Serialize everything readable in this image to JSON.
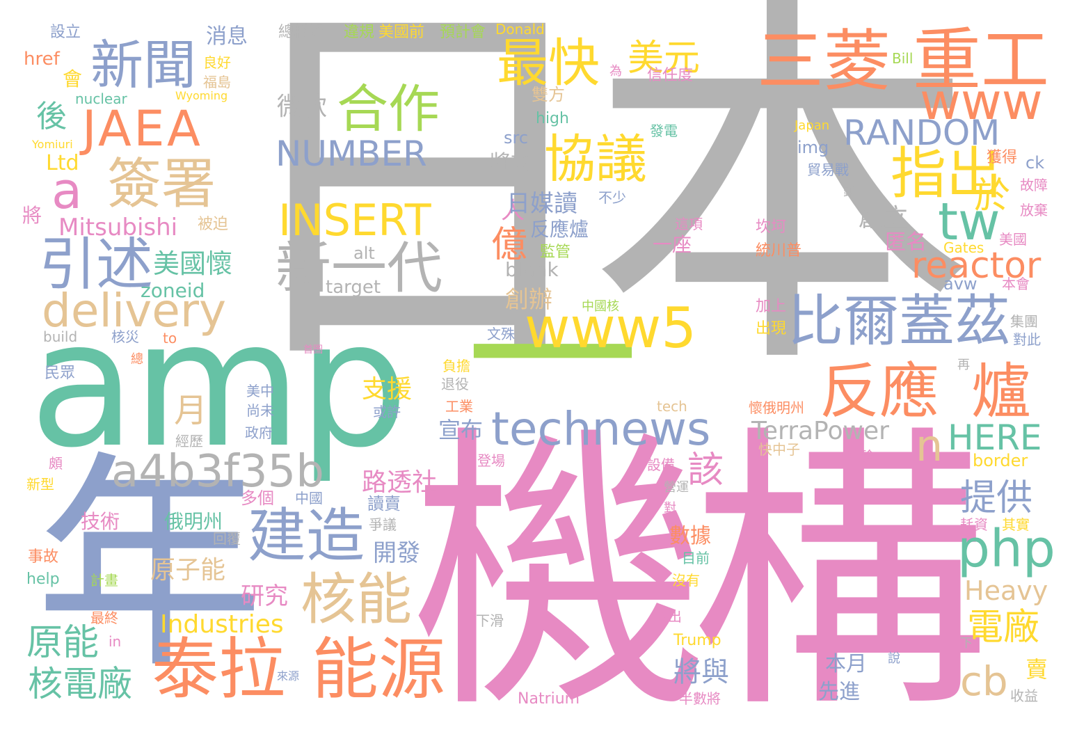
{
  "palette": {
    "green": "#66c2a5",
    "orange": "#fc8d62",
    "blue": "#8da0cb",
    "pink": "#e78ac3",
    "lime": "#a6d854",
    "yellow": "#ffd92f",
    "tan": "#e5c494",
    "gray": "#b3b3b3"
  },
  "words": [
    {
      "text": "日本",
      "color": "gray",
      "weight": "largest"
    },
    {
      "text": "機構",
      "color": "pink",
      "weight": "largest"
    },
    {
      "text": "amp",
      "color": "green",
      "weight": "largest"
    },
    {
      "text": "年",
      "color": "blue",
      "weight": "largest"
    },
    {
      "text": "一",
      "color": "lime",
      "weight": "large"
    },
    {
      "text": "三菱",
      "color": "orange",
      "weight": "large"
    },
    {
      "text": "重工",
      "color": "orange",
      "weight": "large"
    },
    {
      "text": "新聞",
      "color": "blue",
      "weight": "large"
    },
    {
      "text": "JAEA",
      "color": "orange",
      "weight": "large"
    },
    {
      "text": "合作",
      "color": "lime",
      "weight": "large"
    },
    {
      "text": "NUMBER",
      "color": "blue",
      "weight": "large"
    },
    {
      "text": "最快",
      "color": "yellow",
      "weight": "large"
    },
    {
      "text": "美元",
      "color": "yellow",
      "weight": "medium"
    },
    {
      "text": "www",
      "color": "orange",
      "weight": "large"
    },
    {
      "text": "RANDOM",
      "color": "blue",
      "weight": "large"
    },
    {
      "text": "協議",
      "color": "yellow",
      "weight": "large"
    },
    {
      "text": "指出",
      "color": "yellow",
      "weight": "large"
    },
    {
      "text": "於",
      "color": "yellow",
      "weight": "medium"
    },
    {
      "text": "簽署",
      "color": "tan",
      "weight": "large"
    },
    {
      "text": "a",
      "color": "pink",
      "weight": "medium"
    },
    {
      "text": "INSERT",
      "color": "yellow",
      "weight": "large"
    },
    {
      "text": "新一代",
      "color": "gray",
      "weight": "large"
    },
    {
      "text": "tw",
      "color": "green",
      "weight": "large"
    },
    {
      "text": "引述",
      "color": "blue",
      "weight": "large"
    },
    {
      "text": "delivery",
      "color": "tan",
      "weight": "large"
    },
    {
      "text": "www5",
      "color": "yellow",
      "weight": "large"
    },
    {
      "text": "比爾蓋茲",
      "color": "blue",
      "weight": "large"
    },
    {
      "text": "reactor",
      "color": "orange",
      "weight": "large"
    },
    {
      "text": "反應",
      "color": "orange",
      "weight": "large"
    },
    {
      "text": "爐",
      "color": "orange",
      "weight": "large"
    },
    {
      "text": "technews",
      "color": "blue",
      "weight": "large"
    },
    {
      "text": "a4b3f35b",
      "color": "gray",
      "weight": "large"
    },
    {
      "text": "泰拉",
      "color": "orange",
      "weight": "large"
    },
    {
      "text": "能源",
      "color": "orange",
      "weight": "large"
    },
    {
      "text": "建造",
      "color": "blue",
      "weight": "large"
    },
    {
      "text": "核能",
      "color": "tan",
      "weight": "large"
    },
    {
      "text": "php",
      "color": "green",
      "weight": "large"
    },
    {
      "text": "n",
      "color": "tan",
      "weight": "medium"
    },
    {
      "text": "HERE",
      "color": "green",
      "weight": "medium"
    },
    {
      "text": "TerraPower",
      "color": "gray",
      "weight": "medium"
    },
    {
      "text": "cb",
      "color": "tan",
      "weight": "medium"
    },
    {
      "text": "原能",
      "color": "green",
      "weight": "medium"
    },
    {
      "text": "核電廠",
      "color": "green",
      "weight": "medium"
    },
    {
      "text": "Mitsubishi",
      "color": "pink",
      "weight": "medium"
    },
    {
      "text": "美國懷",
      "color": "green",
      "weight": "medium"
    },
    {
      "text": "Industries",
      "color": "yellow",
      "weight": "medium"
    },
    {
      "text": "月",
      "color": "tan",
      "weight": "medium"
    },
    {
      "text": "提供",
      "color": "blue",
      "weight": "medium"
    },
    {
      "text": "電廠",
      "color": "yellow",
      "weight": "medium"
    },
    {
      "text": "Heavy",
      "color": "tan",
      "weight": "small"
    },
    {
      "text": "該",
      "color": "pink",
      "weight": "medium"
    },
    {
      "text": "億",
      "color": "orange",
      "weight": "medium"
    },
    {
      "text": "人",
      "color": "pink",
      "weight": "small"
    },
    {
      "text": "路透社",
      "color": "pink",
      "weight": "small"
    },
    {
      "text": "支援",
      "color": "yellow",
      "weight": "small"
    },
    {
      "text": "宣布",
      "color": "blue",
      "weight": "small"
    },
    {
      "text": "將與",
      "color": "blue",
      "weight": "small"
    },
    {
      "text": "日媒讀",
      "color": "blue",
      "weight": "small"
    },
    {
      "text": "後",
      "color": "green",
      "weight": "small"
    },
    {
      "text": "Ltd",
      "color": "yellow",
      "weight": "small"
    },
    {
      "text": "zoneid",
      "color": "green",
      "weight": "small"
    },
    {
      "text": "原子能",
      "color": "tan",
      "weight": "small"
    },
    {
      "text": "研究",
      "color": "pink",
      "weight": "small"
    },
    {
      "text": "技術",
      "color": "pink",
      "weight": "small"
    },
    {
      "text": "俄明州",
      "color": "green",
      "weight": "small"
    },
    {
      "text": "開發",
      "color": "blue",
      "weight": "small"
    },
    {
      "text": "微軟",
      "color": "gray",
      "weight": "small"
    },
    {
      "text": "target",
      "color": "gray",
      "weight": "small"
    },
    {
      "text": "消息",
      "color": "blue",
      "weight": "small"
    },
    {
      "text": "將",
      "color": "pink",
      "weight": "small"
    },
    {
      "text": "創辦",
      "color": "tan",
      "weight": "small"
    },
    {
      "text": "創立",
      "color": "gray",
      "weight": "small"
    },
    {
      "text": "匿名",
      "color": "pink",
      "weight": "small"
    },
    {
      "text": "數據",
      "color": "orange",
      "weight": "small"
    },
    {
      "text": "賣",
      "color": "yellow",
      "weight": "small"
    },
    {
      "text": "本月",
      "color": "blue",
      "weight": "small"
    },
    {
      "text": "先進",
      "color": "blue",
      "weight": "small"
    },
    {
      "text": "雙方",
      "color": "tan",
      "weight": "tiny"
    },
    {
      "text": "src",
      "color": "blue",
      "weight": "tiny"
    },
    {
      "text": "high",
      "color": "green",
      "weight": "tiny"
    },
    {
      "text": "img",
      "color": "blue",
      "weight": "tiny"
    },
    {
      "text": "將於",
      "color": "gray",
      "weight": "tiny"
    },
    {
      "text": "反應爐",
      "color": "blue",
      "weight": "tiny"
    },
    {
      "text": "一座",
      "color": "pink",
      "weight": "tiny"
    },
    {
      "text": "監管",
      "color": "lime",
      "weight": "tiny"
    },
    {
      "text": "blank",
      "color": "gray",
      "weight": "tiny"
    },
    {
      "text": "avw",
      "color": "blue",
      "weight": "tiny"
    },
    {
      "text": "alt",
      "color": "gray",
      "weight": "tiny"
    },
    {
      "text": "href",
      "color": "orange",
      "weight": "tiny"
    },
    {
      "text": "設立",
      "color": "blue",
      "weight": "tiny"
    },
    {
      "text": "總耗資",
      "color": "gray",
      "weight": "tiny"
    },
    {
      "text": "違規",
      "color": "lime",
      "weight": "tiny"
    },
    {
      "text": "美國前",
      "color": "yellow",
      "weight": "tiny"
    },
    {
      "text": "預計會",
      "color": "lime",
      "weight": "tiny"
    },
    {
      "text": "Donald",
      "color": "yellow",
      "weight": "tiny"
    },
    {
      "text": "良好",
      "color": "yellow",
      "weight": "tiny"
    },
    {
      "text": "福島",
      "color": "tan",
      "weight": "tiny"
    },
    {
      "text": "會",
      "color": "yellow",
      "weight": "tiny"
    },
    {
      "text": "nuclear",
      "color": "green",
      "weight": "tiny"
    },
    {
      "text": "Wyoming",
      "color": "yellow",
      "weight": "tiny"
    },
    {
      "text": "Yomiuri",
      "color": "yellow",
      "weight": "tiny"
    },
    {
      "text": "被迫",
      "color": "tan",
      "weight": "tiny"
    },
    {
      "text": "為",
      "color": "pink",
      "weight": "tiny"
    },
    {
      "text": "信任度",
      "color": "pink",
      "weight": "tiny"
    },
    {
      "text": "Bill",
      "color": "lime",
      "weight": "tiny"
    },
    {
      "text": "Japan",
      "color": "yellow",
      "weight": "tiny"
    },
    {
      "text": "發電",
      "color": "green",
      "weight": "tiny"
    },
    {
      "text": "貿易戰",
      "color": "blue",
      "weight": "tiny"
    },
    {
      "text": "鈉",
      "color": "gray",
      "weight": "tiny"
    },
    {
      "text": "獲得",
      "color": "orange",
      "weight": "tiny"
    },
    {
      "text": "ck",
      "color": "blue",
      "weight": "tiny"
    },
    {
      "text": "故障",
      "color": "pink",
      "weight": "tiny"
    },
    {
      "text": "不少",
      "color": "blue",
      "weight": "tiny"
    },
    {
      "text": "這項",
      "color": "pink",
      "weight": "tiny"
    },
    {
      "text": "坎坷",
      "color": "pink",
      "weight": "tiny"
    },
    {
      "text": "放棄",
      "color": "pink",
      "weight": "tiny"
    },
    {
      "text": "美國",
      "color": "pink",
      "weight": "tiny"
    },
    {
      "text": "統川普",
      "color": "orange",
      "weight": "tiny"
    },
    {
      "text": "Gates",
      "color": "yellow",
      "weight": "tiny"
    },
    {
      "text": "本會",
      "color": "pink",
      "weight": "tiny"
    },
    {
      "text": "中國核",
      "color": "lime",
      "weight": "tiny"
    },
    {
      "text": "加上",
      "color": "pink",
      "weight": "tiny"
    },
    {
      "text": "出現",
      "color": "yellow",
      "weight": "tiny"
    },
    {
      "text": "集團",
      "color": "gray",
      "weight": "tiny"
    },
    {
      "text": "對此",
      "color": "blue",
      "weight": "tiny"
    },
    {
      "text": "build",
      "color": "gray",
      "weight": "tiny"
    },
    {
      "text": "核災",
      "color": "blue",
      "weight": "tiny"
    },
    {
      "text": "to",
      "color": "orange",
      "weight": "tiny"
    },
    {
      "text": "文殊",
      "color": "blue",
      "weight": "tiny"
    },
    {
      "text": "首圖",
      "color": "pink",
      "weight": "tiny"
    },
    {
      "text": "總",
      "color": "orange",
      "weight": "tiny"
    },
    {
      "text": "民眾",
      "color": "blue",
      "weight": "tiny"
    },
    {
      "text": "負擔",
      "color": "yellow",
      "weight": "tiny"
    },
    {
      "text": "退役",
      "color": "gray",
      "weight": "tiny"
    },
    {
      "text": "美中",
      "color": "blue",
      "weight": "tiny"
    },
    {
      "text": "尚未",
      "color": "blue",
      "weight": "tiny"
    },
    {
      "text": "或許",
      "color": "blue",
      "weight": "tiny"
    },
    {
      "text": "工業",
      "color": "orange",
      "weight": "tiny"
    },
    {
      "text": "tech",
      "color": "tan",
      "weight": "tiny"
    },
    {
      "text": "懷俄明州",
      "color": "orange",
      "weight": "tiny"
    },
    {
      "text": "再",
      "color": "gray",
      "weight": "tiny"
    },
    {
      "text": "政府",
      "color": "blue",
      "weight": "tiny"
    },
    {
      "text": "經歷",
      "color": "gray",
      "weight": "tiny"
    },
    {
      "text": "快中子",
      "color": "tan",
      "weight": "tiny"
    },
    {
      "text": "登場",
      "color": "pink",
      "weight": "tiny"
    },
    {
      "text": "經驗",
      "color": "pink",
      "weight": "tiny"
    },
    {
      "text": "border",
      "color": "yellow",
      "weight": "tiny"
    },
    {
      "text": "頗",
      "color": "pink",
      "weight": "tiny"
    },
    {
      "text": "新型",
      "color": "yellow",
      "weight": "tiny"
    },
    {
      "text": "多個",
      "color": "pink",
      "weight": "tiny"
    },
    {
      "text": "中國",
      "color": "blue",
      "weight": "tiny"
    },
    {
      "text": "讀賣",
      "color": "blue",
      "weight": "tiny"
    },
    {
      "text": "設備",
      "color": "pink",
      "weight": "tiny"
    },
    {
      "text": "營運",
      "color": "gray",
      "weight": "tiny"
    },
    {
      "text": "對",
      "color": "pink",
      "weight": "tiny"
    },
    {
      "text": "爭議",
      "color": "gray",
      "weight": "tiny"
    },
    {
      "text": "回覆",
      "color": "gray",
      "weight": "tiny"
    },
    {
      "text": "耗資",
      "color": "pink",
      "weight": "tiny"
    },
    {
      "text": "其實",
      "color": "yellow",
      "weight": "tiny"
    },
    {
      "text": "事故",
      "color": "orange",
      "weight": "tiny"
    },
    {
      "text": "目前",
      "color": "green",
      "weight": "tiny"
    },
    {
      "text": "沒有",
      "color": "yellow",
      "weight": "tiny"
    },
    {
      "text": "help",
      "color": "green",
      "weight": "tiny"
    },
    {
      "text": "計畫",
      "color": "lime",
      "weight": "tiny"
    },
    {
      "text": "最終",
      "color": "orange",
      "weight": "tiny"
    },
    {
      "text": "做出",
      "color": "pink",
      "weight": "tiny"
    },
    {
      "text": "下滑",
      "color": "gray",
      "weight": "tiny"
    },
    {
      "text": "in",
      "color": "pink",
      "weight": "tiny"
    },
    {
      "text": "Trump",
      "color": "yellow",
      "weight": "tiny"
    },
    {
      "text": "下",
      "color": "gray",
      "weight": "tiny"
    },
    {
      "text": "說",
      "color": "blue",
      "weight": "tiny"
    },
    {
      "text": "來源",
      "color": "blue",
      "weight": "tiny"
    },
    {
      "text": "Natrium",
      "color": "pink",
      "weight": "tiny"
    },
    {
      "text": "半數將",
      "color": "pink",
      "weight": "tiny"
    },
    {
      "text": "收益",
      "color": "gray",
      "weight": "tiny"
    }
  ]
}
